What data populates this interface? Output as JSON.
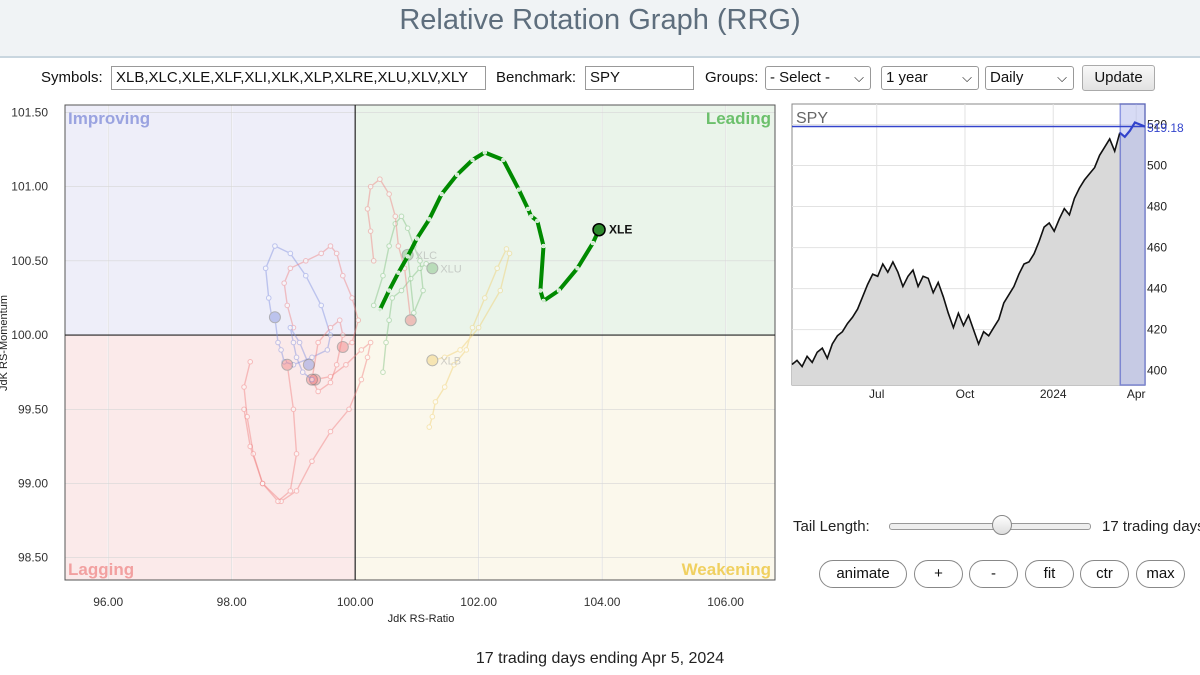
{
  "app": {
    "title": "Relative Rotation Graph (RRG)"
  },
  "controls": {
    "symbols_label": "Symbols:",
    "symbols_value": "XLB,XLC,XLE,XLF,XLI,XLK,XLP,XLRE,XLU,XLV,XLY",
    "benchmark_label": "Benchmark:",
    "benchmark_value": "SPY",
    "groups_label": "Groups:",
    "groups_value": "- Select -",
    "period_value": "1 year",
    "interval_value": "Daily",
    "update_label": "Update"
  },
  "quadrants": {
    "improving": "Improving",
    "leading": "Leading",
    "lagging": "Lagging",
    "weakening": "Weakening"
  },
  "colors": {
    "improving_bg": "#eeeef9",
    "leading_bg": "#eaf4ea",
    "lagging_bg": "#fbeaea",
    "weakening_bg": "#fbf8ec",
    "xle_tail": "#008a00",
    "spy_line": "#111111",
    "spy_highlight": "#3344cc"
  },
  "rrg": {
    "x_axis_label": "JdK RS-Ratio",
    "y_axis_label": "JdK RS-Momentum",
    "x_ticks": [
      "96.00",
      "98.00",
      "100.00",
      "102.00",
      "104.00",
      "106.00"
    ],
    "y_ticks": [
      "101.50",
      "101.00",
      "100.50",
      "100.00",
      "99.50",
      "99.00",
      "98.50"
    ],
    "highlight_symbol": "XLE",
    "faded_labels": [
      "XLC",
      "XLU",
      "XLB"
    ]
  },
  "chart_data": {
    "type": "scatter",
    "xlabel": "JdK RS-Ratio",
    "ylabel": "JdK RS-Momentum",
    "xlim": [
      95.3,
      106.8
    ],
    "ylim": [
      98.35,
      101.55
    ],
    "series": [
      {
        "name": "XLE",
        "x": [
          100.4,
          100.55,
          100.7,
          100.85,
          101.0,
          101.2,
          101.4,
          101.65,
          101.9,
          102.1,
          102.4,
          102.65,
          102.8,
          102.85,
          102.95,
          103.05,
          103.0,
          103.05,
          103.3,
          103.6,
          103.85,
          103.95
        ],
        "y": [
          100.17,
          100.3,
          100.42,
          100.53,
          100.65,
          100.78,
          100.95,
          101.08,
          101.18,
          101.23,
          101.18,
          100.98,
          100.85,
          100.8,
          100.77,
          100.6,
          100.3,
          100.23,
          100.3,
          100.45,
          100.62,
          100.71
        ]
      },
      {
        "name": "XLC",
        "x": [
          100.3,
          100.45,
          100.55,
          100.65,
          100.75,
          100.85,
          100.95,
          101.05,
          101.1,
          100.95,
          100.85
        ],
        "y": [
          100.2,
          100.4,
          100.6,
          100.75,
          100.8,
          100.72,
          100.6,
          100.5,
          100.3,
          100.15,
          100.54
        ]
      },
      {
        "name": "XLU",
        "x": [
          100.45,
          100.5,
          100.55,
          100.6,
          100.75,
          100.9,
          101.05,
          101.15,
          101.25
        ],
        "y": [
          99.75,
          99.95,
          100.1,
          100.25,
          100.3,
          100.38,
          100.45,
          100.48,
          100.45
        ]
      },
      {
        "name": "XLB",
        "x": [
          101.2,
          101.25,
          101.3,
          101.45,
          101.6,
          101.8,
          101.9,
          102.1,
          102.3,
          102.45,
          102.5,
          102.35,
          102.0,
          101.7,
          101.45,
          101.25
        ],
        "y": [
          99.38,
          99.45,
          99.55,
          99.65,
          99.8,
          99.9,
          100.05,
          100.25,
          100.45,
          100.58,
          100.55,
          100.3,
          100.05,
          99.9,
          99.85,
          99.83
        ]
      },
      {
        "name": "XLF",
        "x": [
          98.2,
          98.3,
          98.5,
          98.8,
          99.05,
          99.3,
          99.6,
          99.9,
          100.1,
          100.2,
          100.25,
          100.1,
          99.85,
          99.6,
          99.35
        ],
        "y": [
          99.5,
          99.25,
          99.0,
          98.88,
          98.95,
          99.15,
          99.35,
          99.5,
          99.7,
          99.85,
          99.95,
          99.9,
          99.8,
          99.72,
          99.7
        ]
      },
      {
        "name": "XLK",
        "x": [
          98.65,
          98.6,
          98.55,
          98.7,
          98.95,
          99.2,
          99.45,
          99.6,
          99.55,
          99.3,
          99.0,
          98.85,
          98.8,
          98.75,
          98.7
        ],
        "y": [
          100.12,
          100.25,
          100.45,
          100.6,
          100.55,
          100.4,
          100.2,
          100.0,
          99.9,
          99.85,
          99.8,
          99.82,
          99.9,
          99.95,
          100.12
        ]
      },
      {
        "name": "XLV",
        "x": [
          98.3,
          98.2,
          98.25,
          98.35,
          98.5,
          98.75,
          98.95,
          99.05,
          99.0,
          98.9
        ],
        "y": [
          99.82,
          99.65,
          99.45,
          99.2,
          99.0,
          98.88,
          98.95,
          99.2,
          99.5,
          99.8
        ]
      },
      {
        "name": "XLY",
        "x": [
          99.0,
          98.9,
          98.85,
          98.95,
          99.2,
          99.45,
          99.6,
          99.7,
          99.8,
          99.95,
          100.05,
          99.95,
          99.8
        ],
        "y": [
          100.05,
          100.2,
          100.35,
          100.45,
          100.5,
          100.55,
          100.6,
          100.55,
          100.4,
          100.25,
          100.1,
          99.95,
          99.92
        ]
      },
      {
        "name": "XLP",
        "x": [
          99.3,
          99.4,
          99.6,
          99.7,
          99.8,
          99.75,
          99.6,
          99.4,
          99.3
        ],
        "y": [
          99.7,
          99.62,
          99.68,
          99.8,
          100.0,
          100.1,
          100.05,
          99.95,
          99.7
        ]
      },
      {
        "name": "XLI",
        "x": [
          100.3,
          100.25,
          100.2,
          100.25,
          100.4,
          100.55,
          100.65,
          100.7,
          100.8,
          100.9
        ],
        "y": [
          100.5,
          100.7,
          100.85,
          101.0,
          101.05,
          100.95,
          100.8,
          100.6,
          100.45,
          100.1
        ]
      },
      {
        "name": "XLRE",
        "x": [
          99.3,
          99.15,
          99.05,
          99.0,
          98.95,
          99.1,
          99.25
        ],
        "y": [
          99.7,
          99.75,
          99.85,
          99.95,
          100.05,
          99.95,
          99.8
        ]
      }
    ]
  },
  "spy_chart": {
    "symbol": "SPY",
    "last_price": "519.18",
    "y_ticks": [
      "400",
      "420",
      "440",
      "460",
      "480",
      "500",
      "520"
    ],
    "x_ticks": [
      "Jul",
      "Oct",
      "2024",
      "Apr"
    ],
    "ylim": [
      393,
      530
    ],
    "prices": [
      403,
      405,
      402,
      407,
      404,
      409,
      411,
      406,
      413,
      417,
      419,
      423,
      426,
      430,
      436,
      442,
      447,
      446,
      452,
      448,
      453,
      448,
      441,
      446,
      449,
      441,
      446,
      445,
      438,
      443,
      436,
      428,
      421,
      428,
      422,
      427,
      420,
      413,
      419,
      417,
      421,
      425,
      433,
      437,
      441,
      447,
      452,
      453,
      457,
      463,
      470,
      472,
      468,
      474,
      479,
      476,
      484,
      489,
      493,
      496,
      499,
      505,
      509,
      513,
      507,
      516,
      514,
      517,
      521,
      520,
      519
    ]
  },
  "tail": {
    "label": "Tail Length:",
    "value_text": "17 trading days",
    "slider_fraction": 0.56
  },
  "buttons": {
    "animate": "animate",
    "zoom_in": "+",
    "zoom_out": "-",
    "fit": "fit",
    "ctr": "ctr",
    "max": "max"
  },
  "footer": {
    "caption": "17 trading days ending Apr 5, 2024"
  }
}
